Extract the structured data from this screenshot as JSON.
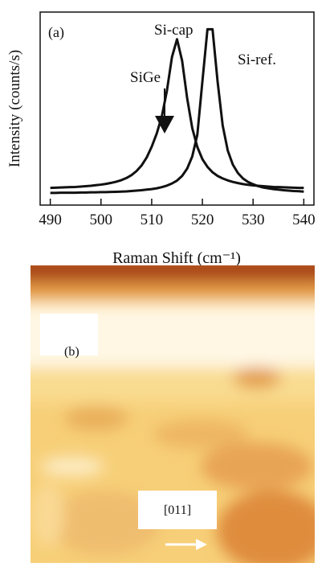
{
  "chart_data": {
    "type": "line",
    "xlabel": "Raman Shift (cm⁻¹)",
    "ylabel": "Intensity (counts/s)",
    "panel_label": "(a)",
    "annotation": "SiGe",
    "x": [
      490,
      491,
      492,
      493,
      494,
      495,
      496,
      497,
      498,
      499,
      500,
      501,
      502,
      503,
      504,
      505,
      506,
      507,
      508,
      509,
      510,
      511,
      512,
      513,
      514,
      515,
      516,
      517,
      518,
      519,
      520,
      521,
      522,
      523,
      524,
      525,
      526,
      527,
      528,
      529,
      530,
      531,
      532,
      533,
      534,
      535,
      536,
      537,
      538,
      539,
      540
    ],
    "series": [
      {
        "name": "Si-cap",
        "color": "#111111",
        "values": [
          8.9,
          9.0,
          9.1,
          9.2,
          9.3,
          9.4,
          9.6,
          9.8,
          10.0,
          10.3,
          10.6,
          11.0,
          11.5,
          12.1,
          12.9,
          14.0,
          15.5,
          17.6,
          20.5,
          24.6,
          30.2,
          37.1,
          45.9,
          59.2,
          76.7,
          85.9,
          74.8,
          55.3,
          39.9,
          30.1,
          23.8,
          19.8,
          17.0,
          15.1,
          13.8,
          12.8,
          12.0,
          11.4,
          10.9,
          10.5,
          10.2,
          10.0,
          9.8,
          9.6,
          9.4,
          9.3,
          9.2,
          9.1,
          9.0,
          8.9,
          8.9
        ]
      },
      {
        "name": "Si-ref.",
        "color": "#111111",
        "values": [
          6.3,
          6.3,
          6.4,
          6.4,
          6.4,
          6.4,
          6.5,
          6.5,
          6.6,
          6.6,
          6.7,
          6.7,
          6.8,
          6.9,
          7.0,
          7.1,
          7.3,
          7.5,
          7.7,
          8.0,
          8.3,
          8.7,
          9.3,
          10.1,
          11.2,
          12.7,
          15.1,
          18.9,
          25.2,
          36.4,
          64.0,
          91.1,
          91.1,
          64.0,
          41.3,
          28.3,
          21.0,
          16.6,
          13.8,
          12.0,
          10.8,
          9.8,
          9.1,
          8.7,
          8.3,
          8.0,
          7.7,
          7.5,
          7.3,
          7.2,
          7.0
        ]
      }
    ],
    "xlim": [
      488,
      542
    ],
    "ylim": [
      0,
      100
    ],
    "xticks": [
      490,
      500,
      510,
      520,
      530,
      540
    ],
    "grid": false
  },
  "image_panel": {
    "label": "(b)",
    "direction": "[011]"
  }
}
